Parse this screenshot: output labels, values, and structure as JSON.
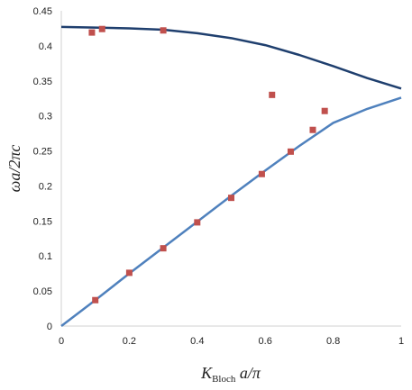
{
  "chart_data": {
    "type": "scatter",
    "xlabel": {
      "main": "K",
      "sub": "Bloch",
      "rest": " a/π"
    },
    "ylabel": "ωa/2πc",
    "xlim": [
      0,
      1
    ],
    "ylim": [
      0,
      0.45
    ],
    "x_ticks": [
      "0",
      "0.2",
      "0.4",
      "0.6",
      "0.8",
      "1"
    ],
    "y_ticks": [
      "0",
      "0.05",
      "0.1",
      "0.15",
      "0.2",
      "0.25",
      "0.3",
      "0.35",
      "0.4",
      "0.45"
    ],
    "grid": false,
    "legend": "none",
    "series": [
      {
        "kind": "line",
        "color": "#1f3f6e",
        "x": [
          0,
          0.1,
          0.2,
          0.3,
          0.4,
          0.5,
          0.6,
          0.7,
          0.8,
          0.9,
          1.0
        ],
        "y": [
          0.427,
          0.426,
          0.425,
          0.423,
          0.418,
          0.411,
          0.401,
          0.387,
          0.371,
          0.354,
          0.339
        ]
      },
      {
        "kind": "line",
        "color": "#4f81bd",
        "x": [
          0,
          0.1,
          0.2,
          0.3,
          0.4,
          0.5,
          0.6,
          0.7,
          0.8,
          0.9,
          1.0
        ],
        "y": [
          0,
          0.037,
          0.075,
          0.112,
          0.149,
          0.186,
          0.222,
          0.257,
          0.29,
          0.31,
          0.326
        ]
      },
      {
        "kind": "scatter",
        "color": "#c0504d",
        "x": [
          0.09,
          0.12,
          0.3,
          0.1,
          0.2,
          0.3,
          0.4,
          0.5,
          0.59,
          0.675,
          0.74,
          0.775,
          0.62
        ],
        "y": [
          0.419,
          0.424,
          0.422,
          0.037,
          0.076,
          0.111,
          0.148,
          0.183,
          0.217,
          0.249,
          0.28,
          0.307,
          0.33
        ]
      }
    ]
  }
}
